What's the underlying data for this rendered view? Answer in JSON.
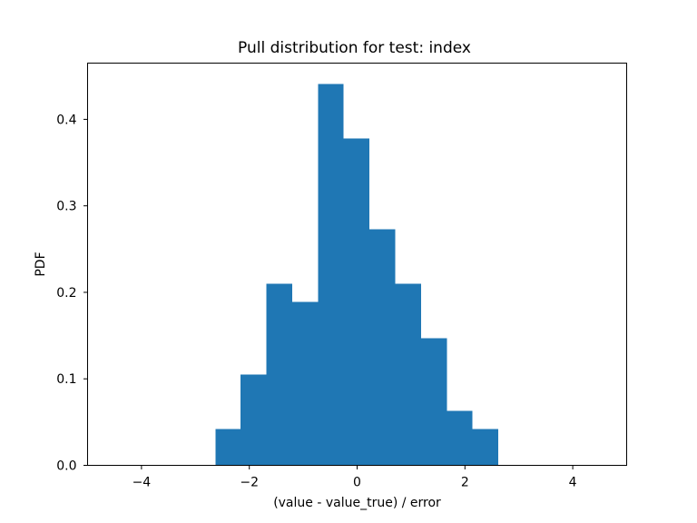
{
  "chart_data": {
    "type": "bar",
    "title": "Pull distribution for test: index",
    "xlabel": "(value - value_true) / error",
    "ylabel": "PDF",
    "xlim": [
      -5,
      5
    ],
    "ylim": [
      0,
      0.465
    ],
    "xticks": [
      -4,
      -2,
      0,
      2,
      4
    ],
    "xtick_labels": [
      "−4",
      "−2",
      "0",
      "2",
      "4"
    ],
    "yticks": [
      0.0,
      0.1,
      0.2,
      0.3,
      0.4
    ],
    "ytick_labels": [
      "0.0",
      "0.1",
      "0.2",
      "0.3",
      "0.4"
    ],
    "grid": false,
    "bar_color": "#1f77b4",
    "bins": [
      {
        "x0": -2.63,
        "x1": -2.16,
        "value": 0.042
      },
      {
        "x0": -2.16,
        "x1": -1.68,
        "value": 0.105
      },
      {
        "x0": -1.68,
        "x1": -1.2,
        "value": 0.21
      },
      {
        "x0": -1.2,
        "x1": -0.72,
        "value": 0.189
      },
      {
        "x0": -0.72,
        "x1": -0.25,
        "value": 0.441
      },
      {
        "x0": -0.25,
        "x1": 0.23,
        "value": 0.378
      },
      {
        "x0": 0.23,
        "x1": 0.71,
        "value": 0.273
      },
      {
        "x0": 0.71,
        "x1": 1.19,
        "value": 0.21
      },
      {
        "x0": 1.19,
        "x1": 1.67,
        "value": 0.147
      },
      {
        "x0": 1.67,
        "x1": 2.14,
        "value": 0.063
      },
      {
        "x0": 2.14,
        "x1": 2.62,
        "value": 0.042
      }
    ]
  }
}
